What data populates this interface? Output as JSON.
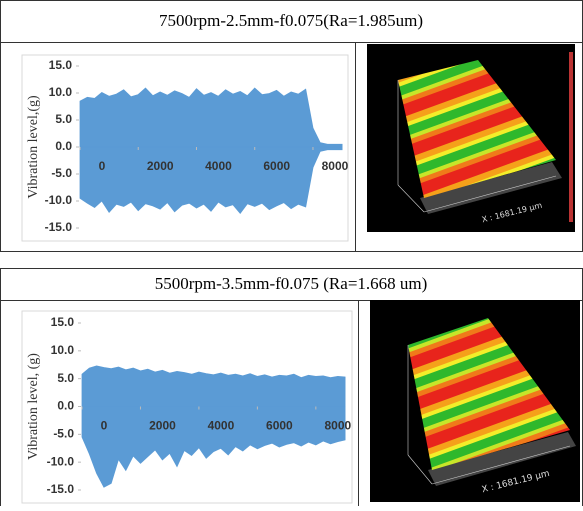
{
  "chart_data": [
    {
      "type": "area",
      "title": "7500rpm-2.5mm-f0.075(Ra=1.985um)",
      "y_label": "Vibration level,(g)",
      "x": [
        0,
        250,
        500,
        750,
        1000,
        1250,
        1500,
        1750,
        2000,
        2250,
        2500,
        2750,
        3000,
        3250,
        3500,
        3750,
        4000,
        4250,
        4500,
        4750,
        5000,
        5250,
        5500,
        5750,
        6000,
        6250,
        6500,
        6750,
        7000,
        7250,
        7500,
        7750,
        8000,
        8250,
        8500,
        8750,
        9000
      ],
      "series": [
        {
          "color": "#5b9bd5",
          "values": [
            8.5,
            9.2,
            9.0,
            10.1,
            9.4,
            9.8,
            10.6,
            9.3,
            9.7,
            10.9,
            9.5,
            10.2,
            9.6,
            10.4,
            9.9,
            9.2,
            10.8,
            9.6,
            10.1,
            9.4,
            10.6,
            9.8,
            10.3,
            9.5,
            10.9,
            9.7,
            9.9,
            10.5,
            9.4,
            10.2,
            9.8,
            10.7,
            3.5,
            0.8,
            0.5,
            0.5,
            0.5
          ]
        },
        {
          "color": "#5b9bd5",
          "values": [
            -9.5,
            -10.4,
            -11.2,
            -10.0,
            -12.1,
            -10.6,
            -11.0,
            -10.2,
            -11.8,
            -10.5,
            -10.9,
            -11.5,
            -10.3,
            -12.0,
            -10.8,
            -10.4,
            -11.3,
            -10.6,
            -11.9,
            -10.2,
            -11.1,
            -10.7,
            -12.3,
            -10.5,
            -11.0,
            -10.4,
            -11.6,
            -10.9,
            -10.3,
            -11.4,
            -10.6,
            -11.1,
            -3.8,
            -0.8,
            -0.5,
            -0.5,
            -0.5
          ]
        }
      ],
      "xlim": [
        0,
        9100
      ],
      "xticks": [
        0,
        2000,
        4000,
        6000,
        8000
      ],
      "ylim": [
        -15,
        15
      ],
      "yticks": [
        {
          "value": 15,
          "label": "15.0"
        },
        {
          "value": 10,
          "label": "10.0"
        },
        {
          "value": 5,
          "label": "5.0"
        },
        {
          "value": 0,
          "label": "0.0"
        },
        {
          "value": -5,
          "label": "-5.0"
        },
        {
          "value": -10,
          "label": "-10.0"
        },
        {
          "value": -15,
          "label": "-15.0"
        }
      ]
    },
    {
      "type": "area",
      "title": "5500rpm-3.5mm-f0.075 (Ra=1.668 um)",
      "y_label": "Vibration level, (g)",
      "x": [
        0,
        250,
        500,
        750,
        1000,
        1250,
        1500,
        1750,
        2000,
        2250,
        2500,
        2750,
        3000,
        3250,
        3500,
        3750,
        4000,
        4250,
        4500,
        4750,
        5000,
        5250,
        5500,
        5750,
        6000,
        6250,
        6500,
        6750,
        7000,
        7250,
        7500,
        7750,
        8000,
        8250,
        8500,
        8750,
        9000
      ],
      "series": [
        {
          "color": "#5b9bd5",
          "values": [
            5.8,
            6.9,
            7.3,
            7.0,
            6.8,
            7.1,
            6.6,
            6.9,
            6.4,
            6.7,
            6.2,
            6.5,
            6.0,
            6.3,
            6.1,
            5.8,
            6.2,
            5.9,
            5.7,
            6.0,
            5.6,
            5.8,
            5.5,
            5.9,
            5.4,
            5.7,
            5.3,
            5.6,
            5.5,
            5.8,
            5.2,
            5.6,
            5.4,
            5.5,
            5.2,
            5.4,
            5.3
          ]
        },
        {
          "color": "#5b9bd5",
          "values": [
            -5.5,
            -8.5,
            -12.0,
            -14.5,
            -13.8,
            -9.5,
            -11.5,
            -8.9,
            -10.2,
            -9.0,
            -7.8,
            -9.6,
            -8.4,
            -10.8,
            -7.9,
            -8.8,
            -7.4,
            -9.3,
            -8.1,
            -7.5,
            -8.7,
            -7.2,
            -8.0,
            -6.9,
            -7.6,
            -7.0,
            -6.6,
            -7.3,
            -6.8,
            -6.5,
            -7.1,
            -6.4,
            -6.9,
            -6.2,
            -6.7,
            -6.3,
            -6.0
          ]
        }
      ],
      "xlim": [
        0,
        9100
      ],
      "xticks": [
        0,
        2000,
        4000,
        6000,
        8000
      ],
      "ylim": [
        -15,
        15
      ],
      "yticks": [
        {
          "value": 15,
          "label": "15.0"
        },
        {
          "value": 10,
          "label": "10.0"
        },
        {
          "value": 5,
          "label": "5.0"
        },
        {
          "value": 0,
          "label": "0.0"
        },
        {
          "value": -5,
          "label": "-5.0"
        },
        {
          "value": -10,
          "label": "-10.0"
        },
        {
          "value": -15,
          "label": "-15.0"
        }
      ]
    }
  ],
  "surface_images": [
    {
      "label": "X : 1681.19 µm"
    },
    {
      "label": "X : 1681.19 µm"
    }
  ]
}
